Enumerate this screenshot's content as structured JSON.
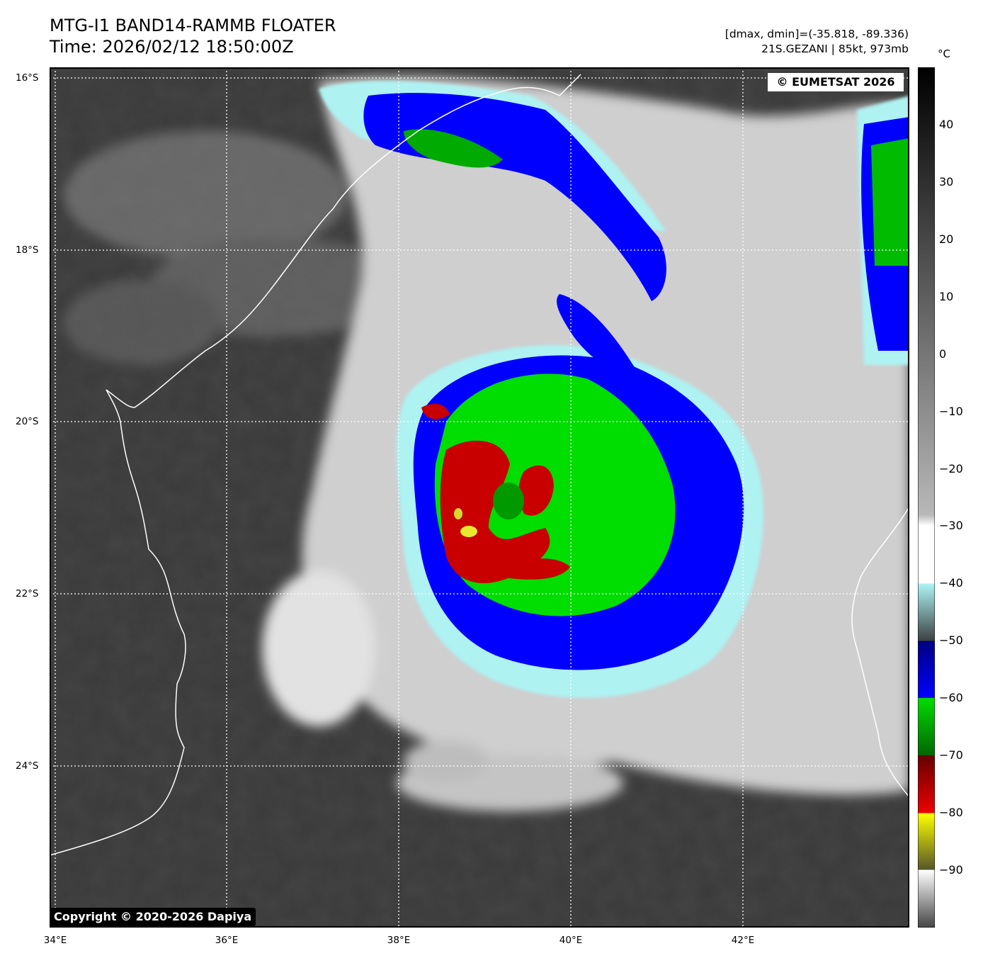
{
  "header": {
    "title_line1": "MTG-I1 BAND14-RAMMB FLOATER",
    "title_line2": "Time: 2026/02/12 18:50:00Z",
    "range_text": "[dmax, dmin]=(-35.818, -89.336)",
    "storm_text": "21S.GEZANI | 85kt, 973mb"
  },
  "map": {
    "watermark_top": "© EUMETSAT 2026",
    "watermark_bottom": "Copyright © 2020-2026 Dapiya",
    "lat_labels": [
      "16°S",
      "18°S",
      "20°S",
      "22°S",
      "24°S"
    ],
    "lon_labels": [
      "34°E",
      "36°E",
      "38°E",
      "40°E",
      "42°E"
    ],
    "storm_name": "21S.GEZANI",
    "storm_intensity_kt": 85,
    "storm_pressure_mb": 973
  },
  "colorbar": {
    "unit": "°C",
    "ticks": [
      "40",
      "30",
      "20",
      "10",
      "0",
      "−10",
      "−20",
      "−30",
      "−40",
      "−50",
      "−60",
      "−70",
      "−80",
      "−90"
    ],
    "range_c": [
      -100,
      50
    ],
    "colors": {
      "warm_black": "#000000",
      "gray": "#8a8a8a",
      "white": "#ffffff",
      "cyan": "#aaf4f4",
      "dark_gray": "#3c4040",
      "navy": "#000088",
      "blue": "#0000ff",
      "green": "#00dd00",
      "dark_green": "#007700",
      "red": "#dd0000",
      "dark_red": "#660000",
      "yellow": "#ffff00",
      "olive": "#666620"
    }
  }
}
